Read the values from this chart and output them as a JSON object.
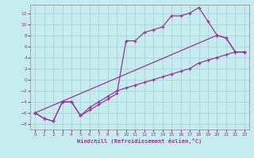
{
  "xlabel": "Windchill (Refroidissement éolien,°C)",
  "background_color": "#c5ecee",
  "grid_color": "#aacccc",
  "line_color": "#993399",
  "xlim": [
    -0.5,
    23.5
  ],
  "ylim": [
    -9,
    13.5
  ],
  "xticks": [
    0,
    1,
    2,
    3,
    4,
    5,
    6,
    7,
    8,
    9,
    10,
    11,
    12,
    13,
    14,
    15,
    16,
    17,
    18,
    19,
    20,
    21,
    22,
    23
  ],
  "yticks": [
    -8,
    -6,
    -4,
    -2,
    0,
    2,
    4,
    6,
    8,
    10,
    12
  ],
  "line1_x": [
    0,
    1,
    2,
    3,
    4,
    5,
    6,
    7,
    8,
    9,
    10,
    11,
    12,
    13,
    14,
    15,
    16,
    17,
    18,
    19,
    20,
    21,
    22,
    23
  ],
  "line1_y": [
    -6,
    -7,
    -7.5,
    -4,
    -4,
    -6.5,
    -5.5,
    -4.5,
    -3.5,
    -2.5,
    7,
    7,
    8.5,
    9,
    9.5,
    11.5,
    11.5,
    12,
    13,
    10.5,
    null,
    null,
    null,
    null
  ],
  "line2_x": [
    0,
    1,
    2,
    3,
    4,
    5,
    6,
    7,
    8,
    9,
    10,
    11,
    12,
    13,
    14,
    15,
    16,
    17,
    18,
    19,
    20,
    21,
    22,
    23
  ],
  "line2_y": [
    -6,
    -7,
    -7.5,
    -4,
    -4,
    -6.5,
    -5,
    -4,
    -3,
    -2,
    -1.5,
    -1,
    -0.5,
    0,
    0.5,
    1,
    1.5,
    2,
    3,
    3.5,
    null,
    null,
    null,
    null
  ],
  "line3_x": [
    0,
    1,
    2,
    3,
    4,
    5,
    6,
    7,
    8,
    9,
    10,
    11,
    12,
    13,
    14,
    15,
    16,
    17,
    18,
    19,
    20,
    21,
    22,
    23
  ],
  "line3_y": [
    -6,
    null,
    null,
    null,
    null,
    null,
    null,
    null,
    null,
    null,
    null,
    null,
    null,
    null,
    null,
    null,
    null,
    null,
    null,
    null,
    8,
    7.5,
    5,
    5
  ],
  "line_upper_x": [
    0,
    1,
    2,
    3,
    4,
    5,
    6,
    7,
    8,
    9,
    10,
    11,
    12,
    13,
    14,
    15,
    16,
    17,
    18,
    19,
    20,
    21,
    22,
    23
  ],
  "line_upper_y": [
    -6,
    -7,
    -7.5,
    -4,
    -4,
    -6.5,
    -5.5,
    -4.5,
    -3.5,
    -2.5,
    7,
    7,
    8.5,
    9,
    9.5,
    11.5,
    11.5,
    12,
    13,
    10.5,
    8,
    7.5,
    5,
    5
  ],
  "line_lower_x": [
    0,
    1,
    2,
    3,
    4,
    5,
    6,
    7,
    8,
    9,
    10,
    11,
    12,
    13,
    14,
    15,
    16,
    17,
    18,
    19,
    20,
    21,
    22,
    23
  ],
  "line_lower_y": [
    -6,
    -7,
    -7.5,
    -4,
    -4,
    -6.5,
    -5,
    -4,
    -3,
    -2,
    -1.5,
    -1,
    -0.5,
    0,
    0.5,
    1,
    1.5,
    2,
    3,
    3.5,
    4,
    4.5,
    5,
    5
  ],
  "line_diag_x": [
    0,
    20,
    21,
    22,
    23
  ],
  "line_diag_y": [
    -6,
    8,
    7.5,
    5,
    5
  ]
}
